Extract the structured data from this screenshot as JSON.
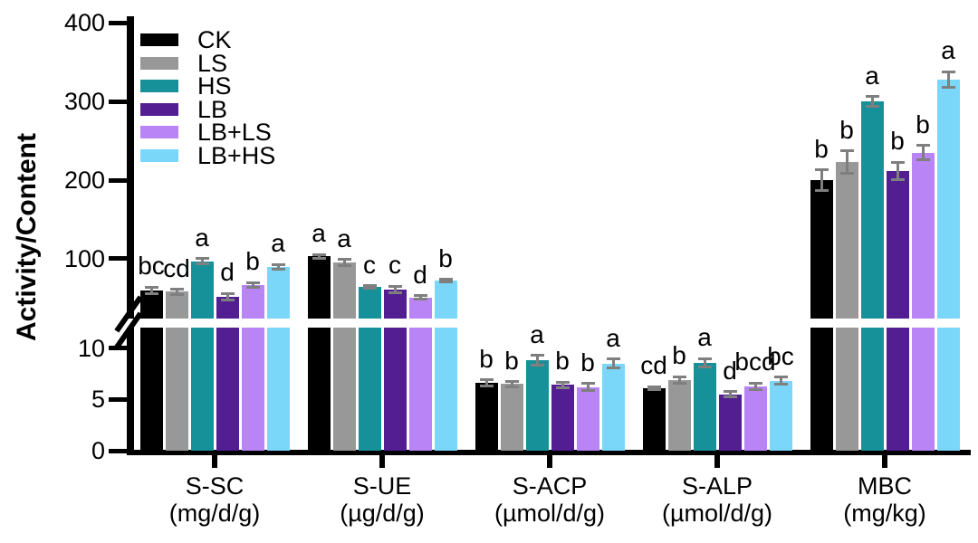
{
  "chart_data": {
    "type": "bar",
    "title": "",
    "ylabel": "Activity/Content",
    "legend": [
      "CK",
      "LS",
      "HS",
      "LB",
      "LB+LS",
      "LB+HS"
    ],
    "series_colors": [
      "#000000",
      "#989898",
      "#16919A",
      "#521E91",
      "#B984F6",
      "#7BD7FA"
    ],
    "error_bar_color": "#7f7f7f",
    "axis": {
      "broken_axis": true,
      "upper_ticks": [
        100,
        200,
        300,
        400
      ],
      "lower_ticks": [
        0,
        5,
        10
      ],
      "upper_range": [
        24,
        406
      ],
      "lower_range": [
        0,
        12
      ],
      "grid": false,
      "legend_position": "upper-left"
    },
    "groups": [
      {
        "label": "S-SC",
        "unit": "(mg/d/g)",
        "values": [
          60,
          58,
          97,
          52,
          67,
          90
        ],
        "errors": [
          4,
          3,
          3,
          4,
          3,
          3
        ],
        "letters": [
          "bc",
          "cd",
          "a",
          "d",
          "b",
          "a"
        ]
      },
      {
        "label": "S-UE",
        "unit": "(µg/d/g)",
        "values": [
          103,
          95,
          64,
          61,
          51,
          72
        ],
        "errors": [
          2.5,
          4,
          1.5,
          4,
          2,
          1.5
        ],
        "letters": [
          "a",
          "a",
          "c",
          "c",
          "d",
          "b"
        ]
      },
      {
        "label": "S-ACP",
        "unit": "(µmol/d/g)",
        "values": [
          6.6,
          6.5,
          8.8,
          6.4,
          6.2,
          8.5
        ],
        "errors": [
          0.3,
          0.25,
          0.5,
          0.3,
          0.35,
          0.45
        ],
        "letters": [
          "b",
          "b",
          "a",
          "b",
          "b",
          "a"
        ]
      },
      {
        "label": "S-ALP",
        "unit": "(µmol/d/g)",
        "values": [
          6.1,
          6.9,
          8.6,
          5.5,
          6.3,
          6.8
        ],
        "errors": [
          0.15,
          0.3,
          0.4,
          0.25,
          0.3,
          0.35
        ],
        "letters": [
          "cd",
          "b",
          "a",
          "d",
          "bcd",
          "bc"
        ]
      },
      {
        "label": "MBC",
        "unit": "(mg/kg)",
        "values": [
          200,
          223,
          300,
          212,
          235,
          328
        ],
        "errors": [
          13,
          14,
          6,
          11,
          9,
          10
        ],
        "letters": [
          "b",
          "b",
          "a",
          "b",
          "b",
          "a"
        ]
      }
    ]
  }
}
